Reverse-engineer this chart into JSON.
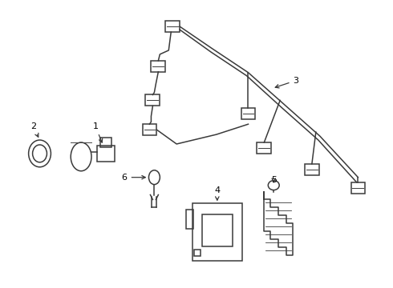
{
  "bg_color": "#ffffff",
  "line_color": "#3a3a3a",
  "label_color": "#000000",
  "fig_width": 4.9,
  "fig_height": 3.6,
  "dpi": 100
}
